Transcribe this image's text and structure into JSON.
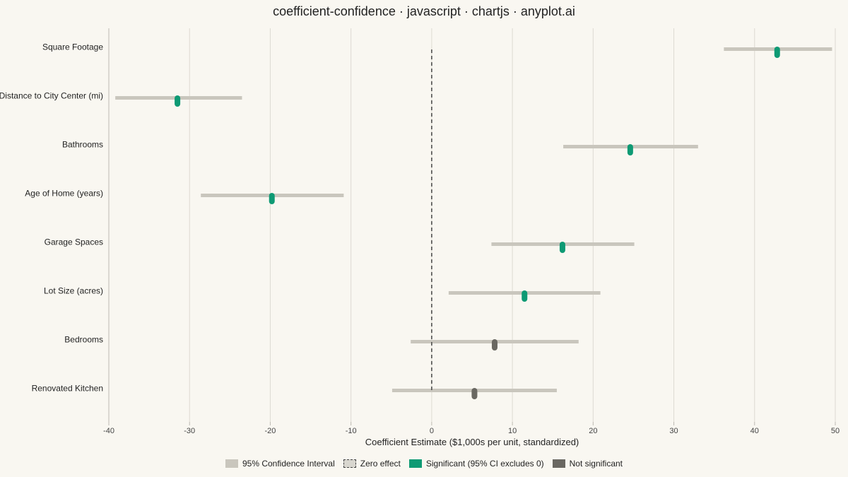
{
  "chart_data": {
    "type": "scatter",
    "title": "coefficient-confidence · javascript · chartjs · anyplot.ai",
    "xlabel": "Coefficient Estimate ($1,000s per unit, standardized)",
    "xlim": [
      -40,
      50
    ],
    "xticks": [
      -40,
      -30,
      -20,
      -10,
      0,
      10,
      20,
      30,
      40,
      50
    ],
    "grid": true,
    "reference_line": 0,
    "legend_position": "bottom",
    "legend": [
      {
        "key": "ci",
        "label": "95% Confidence Interval"
      },
      {
        "key": "zero",
        "label": "Zero effect"
      },
      {
        "key": "sig",
        "label": "Significant (95% CI excludes 0)"
      },
      {
        "key": "nonsig",
        "label": "Not significant"
      }
    ],
    "colors": {
      "ci": "#c9c6bd",
      "significant": "#0e9a74",
      "not_significant": "#6a6862",
      "zero_line": "#444444",
      "grid": "#dddad2"
    },
    "predictors": [
      {
        "name": "Square Footage",
        "estimate": 42.8,
        "ci_low": 36.2,
        "ci_high": 49.6,
        "significant": true
      },
      {
        "name": "Distance to City Center (mi)",
        "estimate": -31.5,
        "ci_low": -39.2,
        "ci_high": -23.5,
        "significant": true
      },
      {
        "name": "Bathrooms",
        "estimate": 24.6,
        "ci_low": 16.3,
        "ci_high": 33.0,
        "significant": true
      },
      {
        "name": "Age of Home (years)",
        "estimate": -19.8,
        "ci_low": -28.6,
        "ci_high": -10.9,
        "significant": true
      },
      {
        "name": "Garage Spaces",
        "estimate": 16.2,
        "ci_low": 7.4,
        "ci_high": 25.1,
        "significant": true
      },
      {
        "name": "Lot Size (acres)",
        "estimate": 11.5,
        "ci_low": 2.1,
        "ci_high": 20.9,
        "significant": true
      },
      {
        "name": "Bedrooms",
        "estimate": 7.8,
        "ci_low": -2.6,
        "ci_high": 18.2,
        "significant": false
      },
      {
        "name": "Renovated Kitchen",
        "estimate": 5.3,
        "ci_low": -4.9,
        "ci_high": 15.5,
        "significant": false
      }
    ]
  }
}
